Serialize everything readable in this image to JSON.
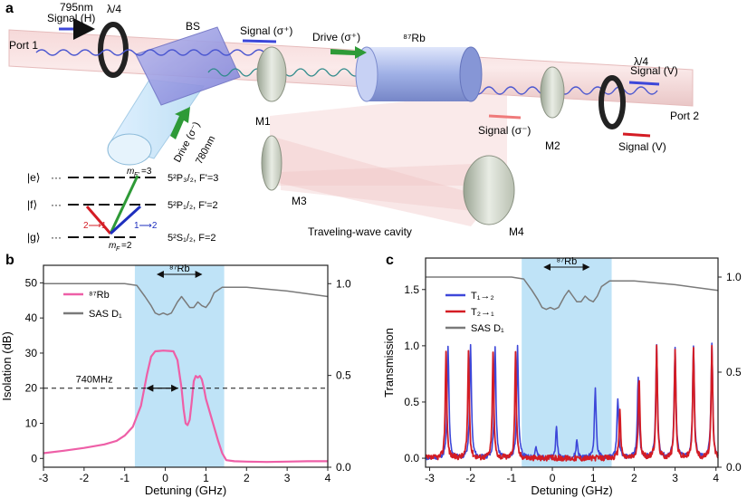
{
  "panel_a": {
    "label": "a",
    "port1": "Port 1",
    "port2": "Port 2",
    "wl795": "795nm",
    "signal_h": "Signal (H)",
    "qwp_left": "λ/4",
    "qwp_right": "λ/4",
    "bs": "BS",
    "signal_sp_in": "Signal (σ⁺)",
    "drive_sp": "Drive (σ⁺)",
    "rb_cell": "⁸⁷Rb",
    "signal_v_out": "Signal (V)",
    "signal_sm": "Signal (σ⁻)",
    "signal_v_in": "Signal (V)",
    "drive_sm": "Drive (σ⁻)",
    "wl780": "780nm",
    "m1": "M1",
    "m2": "M2",
    "m3": "M3",
    "m4": "M4",
    "cavity": "Traveling-wave cavity",
    "level_e": "|e⟩",
    "level_f": "|f⟩",
    "level_g": "|g⟩",
    "dots": "···",
    "mf3": "m",
    "mf3_sub": "F'",
    "mf3_val": "=3",
    "mf2": "m",
    "mf2_sub": "F",
    "mf2_val": "=2",
    "t21": "2⟶1",
    "t12": "1⟶2",
    "state_e": "5²P₃/₂, F'=3",
    "state_f": "5²P₁/₂, F'=2",
    "state_g": "5²S₁/₂, F=2"
  },
  "colors": {
    "pink": "#ee5fa7",
    "gray": "#7a7a7a",
    "blue": "#3d47d9",
    "red": "#d41c24",
    "band": "#bfe3f7",
    "drive_green": "#2e9a37"
  },
  "chart_data": [
    {
      "panel": "b",
      "type": "line",
      "xlabel": "Detuning (GHz)",
      "ylabel": "Isolation (dB)",
      "xlim": [
        -3,
        4
      ],
      "ylim": [
        -2.5,
        55
      ],
      "y2lim": [
        0.0,
        1.1
      ],
      "xticks": [
        "-3",
        "-2",
        "-1",
        "0",
        "1",
        "2",
        "3",
        "4"
      ],
      "yticks": [
        "0",
        "10",
        "20",
        "30",
        "40",
        "50"
      ],
      "y2ticks": [
        "0.0",
        "0.5",
        "1.0"
      ],
      "band": [
        -0.75,
        1.45
      ],
      "band_label": "⁸⁷Rb",
      "annotation": "740MHz",
      "threshold_line": 20,
      "legend": [
        {
          "name": "⁸⁷Rb",
          "color": "#ee5fa7"
        },
        {
          "name": "SAS D₁",
          "color": "#7a7a7a"
        }
      ],
      "series": [
        {
          "name": "⁸⁷Rb",
          "axis": "left",
          "x": [
            -3.0,
            -2.5,
            -2.0,
            -1.5,
            -1.2,
            -1.0,
            -0.8,
            -0.6,
            -0.45,
            -0.35,
            -0.25,
            -0.15,
            -0.05,
            0.1,
            0.2,
            0.3,
            0.4,
            0.45,
            0.5,
            0.55,
            0.6,
            0.65,
            0.7,
            0.75,
            0.8,
            0.85,
            0.9,
            0.95,
            1.0,
            1.1,
            1.2,
            1.3,
            1.4,
            1.5,
            1.7,
            2.0,
            2.5,
            3.0,
            3.5,
            4.0
          ],
          "values": [
            1.5,
            2.2,
            3.0,
            4.0,
            5.0,
            6.5,
            9.0,
            15.0,
            24.0,
            29.0,
            30.5,
            30.6,
            30.7,
            30.6,
            30.5,
            28.0,
            20.0,
            14.0,
            10.0,
            9.5,
            11.0,
            16.0,
            22.0,
            23.5,
            23.0,
            23.5,
            22.5,
            20.0,
            17.0,
            13.0,
            9.0,
            5.0,
            1.5,
            -0.5,
            -0.8,
            -0.9,
            -1.0,
            -0.9,
            -0.8,
            -0.8
          ]
        },
        {
          "name": "SAS D₁",
          "axis": "right",
          "x": [
            -3.0,
            -2.0,
            -1.0,
            -0.7,
            -0.5,
            -0.35,
            -0.25,
            -0.15,
            -0.05,
            0.05,
            0.15,
            0.3,
            0.4,
            0.5,
            0.6,
            0.7,
            0.8,
            0.9,
            1.0,
            1.1,
            1.2,
            1.4,
            2.0,
            3.0,
            4.0
          ],
          "values": [
            1.0,
            1.0,
            1.0,
            0.99,
            0.93,
            0.88,
            0.84,
            0.83,
            0.84,
            0.83,
            0.84,
            0.9,
            0.93,
            0.9,
            0.87,
            0.87,
            0.9,
            0.88,
            0.87,
            0.9,
            0.95,
            0.98,
            0.98,
            0.96,
            0.93
          ]
        }
      ]
    },
    {
      "panel": "c",
      "type": "line",
      "xlabel": "Detuning (GHz)",
      "ylabel": "Transmission",
      "xlim": [
        -3.1,
        4.05
      ],
      "ylim": [
        -0.08,
        1.78
      ],
      "y2lim": [
        0.0,
        1.1
      ],
      "xticks": [
        "-3",
        "-2",
        "-1",
        "0",
        "1",
        "2",
        "3",
        "4"
      ],
      "yticks": [
        "0.0",
        "0.5",
        "1.0",
        "1.5"
      ],
      "y2ticks": [
        "0.0",
        "0.5",
        "1.0"
      ],
      "band": [
        -0.75,
        1.45
      ],
      "band_label": "⁸⁷Rb",
      "legend": [
        {
          "name": "T₁→₂",
          "color": "#3d47d9"
        },
        {
          "name": "T₂→₁",
          "color": "#d41c24"
        },
        {
          "name": "SAS D₁",
          "color": "#7a7a7a"
        }
      ],
      "series": [
        {
          "name": "T₁→₂",
          "axis": "left",
          "peaks_x": [
            -2.55,
            -2.0,
            -1.4,
            -0.85,
            -0.4,
            0.1,
            0.6,
            1.05,
            1.6,
            2.1,
            2.55,
            3.0,
            3.45,
            3.9
          ],
          "peaks_y": [
            1.0,
            1.0,
            0.98,
            0.98,
            0.1,
            0.26,
            0.16,
            0.63,
            0.54,
            0.73,
            0.99,
            0.99,
            1.0,
            1.0
          ]
        },
        {
          "name": "T₂→₁",
          "axis": "left",
          "peaks_x": [
            -2.6,
            -2.05,
            -1.45,
            -0.9,
            1.65,
            2.12,
            2.55,
            3.0,
            3.45,
            3.9
          ],
          "peaks_y": [
            0.95,
            0.95,
            0.93,
            0.93,
            0.44,
            0.72,
            0.98,
            0.98,
            1.0,
            0.99
          ]
        },
        {
          "name": "SAS D₁",
          "axis": "right",
          "x": [
            -3.1,
            -2.0,
            -1.0,
            -0.7,
            -0.5,
            -0.35,
            -0.25,
            -0.15,
            -0.05,
            0.05,
            0.15,
            0.3,
            0.4,
            0.5,
            0.6,
            0.7,
            0.8,
            0.9,
            1.0,
            1.1,
            1.2,
            1.4,
            2.0,
            3.0,
            4.05
          ],
          "values": [
            1.0,
            1.0,
            1.0,
            0.99,
            0.93,
            0.88,
            0.84,
            0.83,
            0.84,
            0.83,
            0.84,
            0.9,
            0.93,
            0.9,
            0.87,
            0.87,
            0.9,
            0.88,
            0.87,
            0.9,
            0.95,
            0.98,
            0.98,
            0.96,
            0.93
          ]
        }
      ]
    }
  ]
}
